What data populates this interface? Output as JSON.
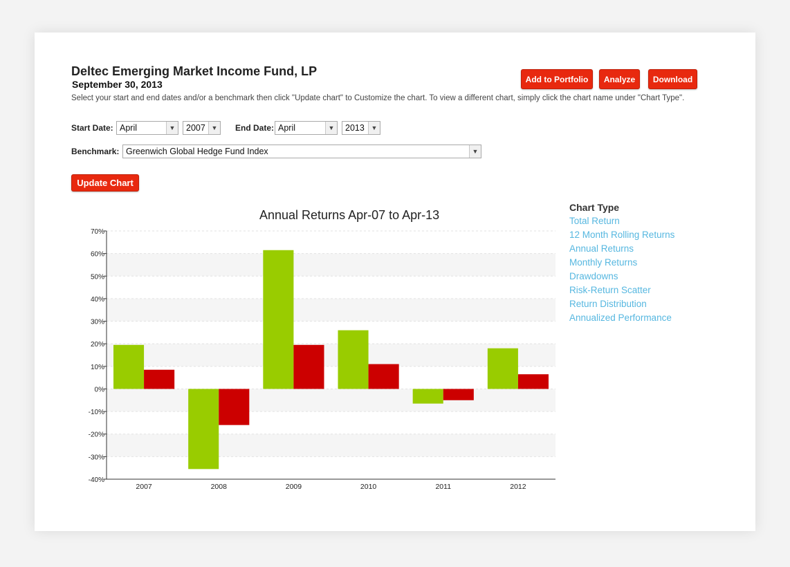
{
  "header": {
    "fund_name": "Deltec Emerging Market Income Fund, LP",
    "as_of_date": "September 30, 2013",
    "instructions": "Select your start and end dates and/or a benchmark then click \"Update chart\" to Customize the chart. To view a different chart, simply click the chart name under \"Chart Type\"."
  },
  "actions": {
    "add_to_portfolio": "Add to Portfolio",
    "analyze": "Analyze",
    "download": "Download",
    "update_chart": "Update Chart"
  },
  "filters": {
    "start_label": "Start Date:",
    "start_month": "April",
    "start_year": "2007",
    "end_label": "End Date:",
    "end_month": "April",
    "end_year": "2013",
    "benchmark_label": "Benchmark:",
    "benchmark": "Greenwich Global Hedge Fund Index"
  },
  "chart_type_panel": {
    "heading": "Chart Type",
    "items": [
      "Total Return",
      "12 Month Rolling Returns",
      "Annual Returns",
      "Monthly Returns",
      "Drawdowns",
      "Risk-Return Scatter",
      "Return Distribution",
      "Annualized Performance"
    ]
  },
  "colors": {
    "accent": "#e8290f",
    "series_fund": "#99cc00",
    "series_benchmark": "#cc0000",
    "link": "#56b7e0"
  },
  "chart_data": {
    "type": "bar",
    "title": "Annual Returns Apr-07 to Apr-13",
    "categories": [
      "2007",
      "2008",
      "2009",
      "2010",
      "2011",
      "2012"
    ],
    "series": [
      {
        "values": [
          19.5,
          -35.5,
          61.5,
          26,
          -6.5,
          18
        ]
      },
      {
        "values": [
          8.5,
          -16,
          19.5,
          11,
          -5,
          6.5
        ]
      }
    ],
    "ylim": [
      -40,
      70
    ],
    "yticks": [
      -40,
      -30,
      -20,
      -10,
      0,
      10,
      20,
      30,
      40,
      50,
      60,
      70
    ],
    "tick_suffix": "%",
    "grid": true
  }
}
